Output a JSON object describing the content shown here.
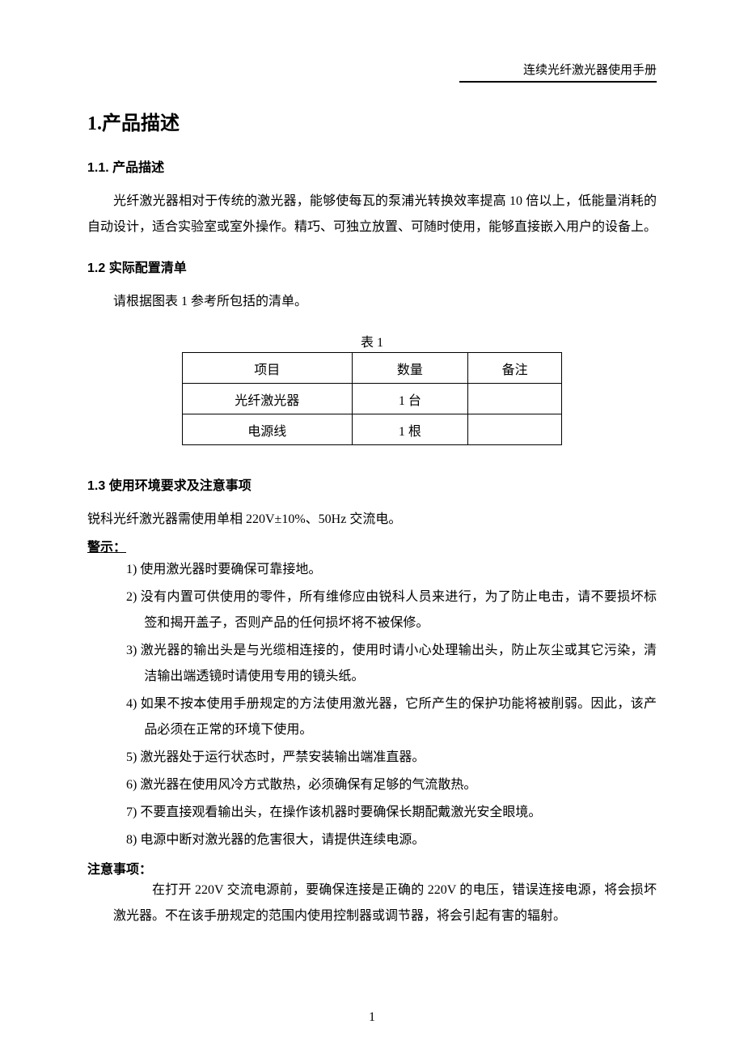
{
  "header": {
    "right_text": "连续光纤激光器使用手册"
  },
  "sec1": {
    "title": "1.产品描述"
  },
  "sec11": {
    "title": "1.1.  产品描述",
    "body": "光纤激光器相对于传统的激光器，能够使每瓦的泵浦光转换效率提高 10 倍以上，低能量消耗的自动设计，适合实验室或室外操作。精巧、可独立放置、可随时使用，能够直接嵌入用户的设备上。"
  },
  "sec12": {
    "title": "1.2  实际配置清单",
    "body": "请根据图表 1 参考所包括的清单。"
  },
  "table1": {
    "caption": "表 1",
    "headers": [
      "项目",
      "数量",
      "备注"
    ],
    "rows": [
      [
        "光纤激光器",
        "1 台",
        ""
      ],
      [
        "电源线",
        "1 根",
        ""
      ]
    ]
  },
  "sec13": {
    "title": "1.3  使用环境要求及注意事项",
    "intro": "锐科光纤激光器需使用单相 220V±10%、50Hz 交流电。"
  },
  "warning": {
    "label": "警示：",
    "items": [
      "1) 使用激光器时要确保可靠接地。",
      "2) 没有内置可供使用的零件，所有维修应由锐科人员来进行，为了防止电击，请不要损坏标签和揭开盖子，否则产品的任何损坏将不被保修。",
      "3) 激光器的输出头是与光缆相连接的，使用时请小心处理输出头，防止灰尘或其它污染，清洁输出端透镜时请使用专用的镜头纸。",
      "4) 如果不按本使用手册规定的方法使用激光器，它所产生的保护功能将被削弱。因此，该产品必须在正常的环境下使用。",
      "5) 激光器处于运行状态时，严禁安装输出端准直器。",
      "6) 激光器在使用风冷方式散热，必须确保有足够的气流散热。",
      "7) 不要直接观看输出头，在操作该机器时要确保长期配戴激光安全眼境。",
      "8) 电源中断对激光器的危害很大，请提供连续电源。"
    ]
  },
  "attention": {
    "label": "注意事项：",
    "body": "在打开 220V 交流电源前，要确保连接是正确的 220V 的电压，错误连接电源，将会损坏激光器。不在该手册规定的范围内使用控制器或调节器，将会引起有害的辐射。"
  },
  "page_number": "1"
}
